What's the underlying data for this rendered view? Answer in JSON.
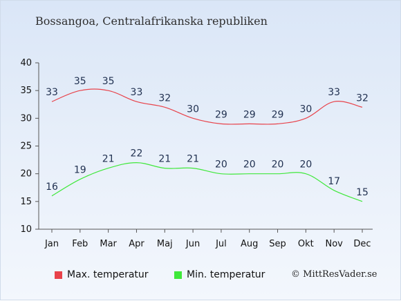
{
  "header": {
    "title": "Bossangoa, Centralafrikanska republiken"
  },
  "footer": {
    "copyright": "© MittResVader.se"
  },
  "chart_data": {
    "type": "line",
    "categories": [
      "Jan",
      "Feb",
      "Mar",
      "Apr",
      "Maj",
      "Jun",
      "Jul",
      "Aug",
      "Sep",
      "Okt",
      "Nov",
      "Dec"
    ],
    "series": [
      {
        "name": "Max. temperatur",
        "color": "#e8424a",
        "values": [
          33,
          35,
          35,
          33,
          32,
          30,
          29,
          29,
          29,
          30,
          33,
          32
        ]
      },
      {
        "name": "Min. temperatur",
        "color": "#3fe83a",
        "values": [
          16,
          19,
          21,
          22,
          21,
          21,
          20,
          20,
          20,
          20,
          17,
          15
        ]
      }
    ],
    "ylim": [
      10,
      40
    ],
    "yticks": [
      10,
      15,
      20,
      25,
      30,
      35,
      40
    ],
    "grid": false,
    "legend_position": "bottom-left",
    "data_labels": true
  }
}
